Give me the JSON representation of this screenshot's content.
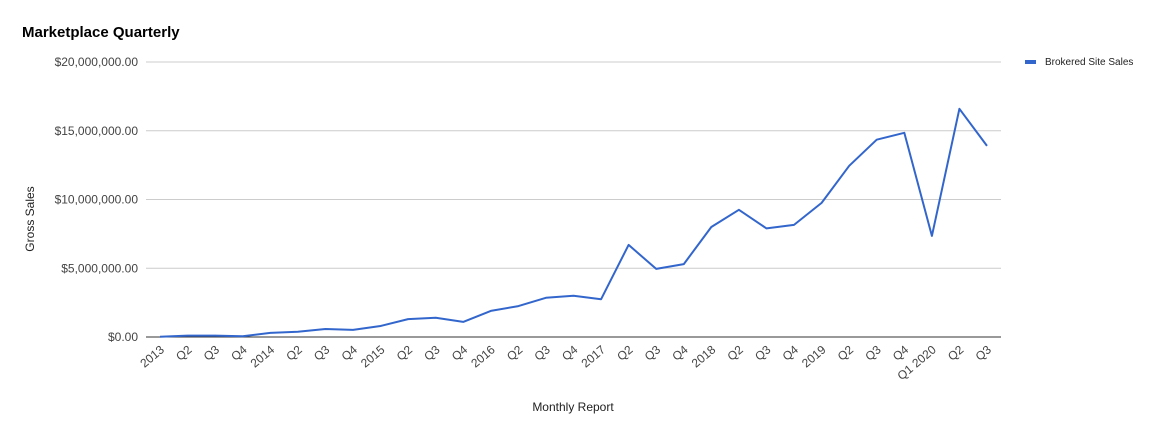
{
  "chart_data": {
    "type": "line",
    "title": "Marketplace Quarterly",
    "x_label": "Monthly Report",
    "y_label": "Gross Sales",
    "categories": [
      "2013",
      "Q2",
      "Q3",
      "Q4",
      "2014",
      "Q2",
      "Q3",
      "Q4",
      "2015",
      "Q2",
      "Q3",
      "Q4",
      "2016",
      "Q2",
      "Q3",
      "Q4",
      "2017",
      "Q2",
      "Q3",
      "Q4",
      "2018",
      "Q2",
      "Q3",
      "Q4",
      "2019",
      "Q2",
      "Q3",
      "Q4",
      "Q1 2020",
      "Q2",
      "Q3"
    ],
    "series": [
      {
        "name": "Brokered Site Sales",
        "color": "#3366cc",
        "values": [
          20000,
          100000,
          100000,
          50000,
          300000,
          380000,
          580000,
          520000,
          800000,
          1300000,
          1400000,
          1100000,
          1900000,
          2250000,
          2850000,
          3000000,
          2750000,
          6700000,
          4950000,
          5300000,
          8000000,
          9250000,
          7900000,
          8150000,
          9750000,
          12450000,
          14350000,
          14850000,
          7350000,
          16600000,
          13900000
        ]
      }
    ],
    "ylim": [
      0,
      20000000
    ],
    "yticks": [
      {
        "value": 0,
        "label": "$0.00"
      },
      {
        "value": 5000000,
        "label": "$5,000,000.00"
      },
      {
        "value": 10000000,
        "label": "$10,000,000.00"
      },
      {
        "value": 15000000,
        "label": "$15,000,000.00"
      },
      {
        "value": 20000000,
        "label": "$20,000,000.00"
      }
    ],
    "grid": true,
    "legend_position": "right"
  }
}
